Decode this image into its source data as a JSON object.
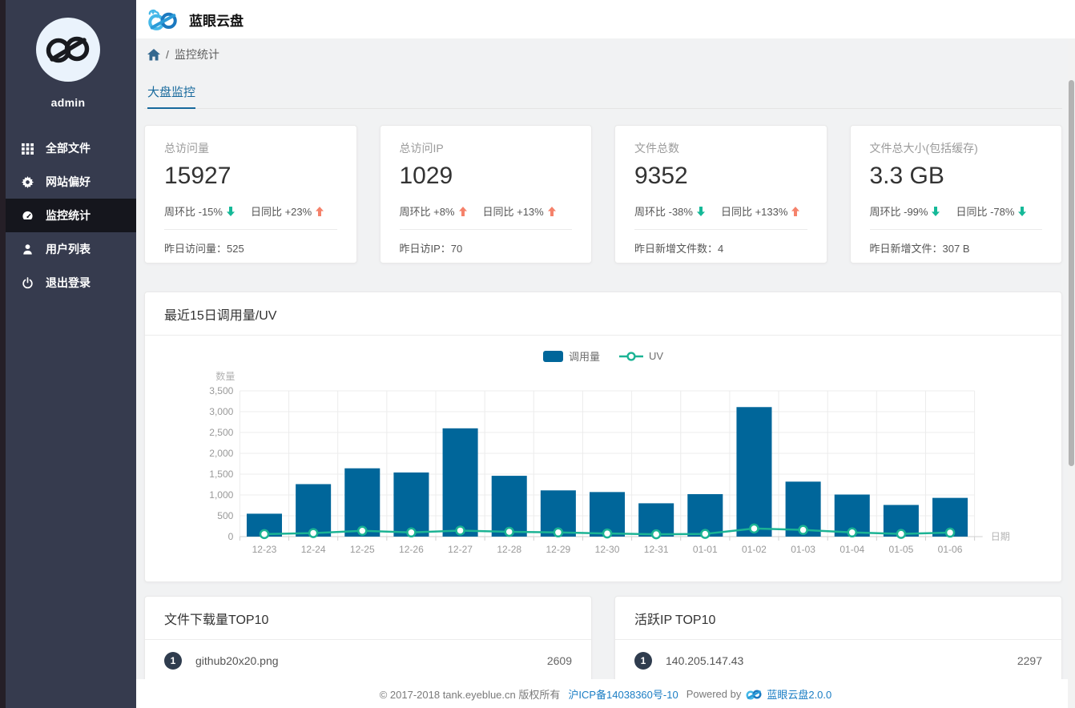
{
  "theme": {
    "sidebar_bg": "#363b4e",
    "sidebar_active_bg": "#15161d",
    "accent_blue": "#17699c",
    "bar_color": "#00669a",
    "line_color": "#1bb394",
    "up_color": "#f5826b",
    "down_color": "#15b998",
    "link_color": "#1a7dc4",
    "badge_color": "#2f3c4e"
  },
  "header": {
    "title": "蓝眼云盘"
  },
  "sidebar": {
    "username": "admin",
    "items": [
      {
        "id": "all-files",
        "label": "全部文件",
        "icon": "grid-icon",
        "active": false
      },
      {
        "id": "site-pref",
        "label": "网站偏好",
        "icon": "gear-icon",
        "active": false
      },
      {
        "id": "monitor",
        "label": "监控统计",
        "icon": "dashboard-icon",
        "active": true
      },
      {
        "id": "user-list",
        "label": "用户列表",
        "icon": "user-icon",
        "active": false
      },
      {
        "id": "logout",
        "label": "退出登录",
        "icon": "power-icon",
        "active": false
      }
    ]
  },
  "breadcrumb": {
    "separator": "/",
    "current": "监控统计"
  },
  "tabs": {
    "active": "大盘监控"
  },
  "stat_cards": [
    {
      "label": "总访问量",
      "value": "15927",
      "trends": [
        {
          "label": "周环比",
          "value": "-15%",
          "direction": "down"
        },
        {
          "label": "日同比",
          "value": "+23%",
          "direction": "up"
        }
      ],
      "footer_label": "昨日访问量：",
      "footer_value": "525"
    },
    {
      "label": "总访问IP",
      "value": "1029",
      "trends": [
        {
          "label": "周环比",
          "value": "+8%",
          "direction": "up"
        },
        {
          "label": "日同比",
          "value": "+13%",
          "direction": "up"
        }
      ],
      "footer_label": "昨日访IP：",
      "footer_value": "70"
    },
    {
      "label": "文件总数",
      "value": "9352",
      "trends": [
        {
          "label": "周环比",
          "value": "-38%",
          "direction": "down"
        },
        {
          "label": "日同比",
          "value": "+133%",
          "direction": "up"
        }
      ],
      "footer_label": "昨日新增文件数：",
      "footer_value": "4"
    },
    {
      "label": "文件总大小(包括缓存)",
      "value": "3.3 GB",
      "trends": [
        {
          "label": "周环比",
          "value": "-99%",
          "direction": "down"
        },
        {
          "label": "日同比",
          "value": "-78%",
          "direction": "down"
        }
      ],
      "footer_label": "昨日新增文件：",
      "footer_value": "307 B"
    }
  ],
  "chart_data": {
    "type": "bar",
    "title": "最近15日调用量/UV",
    "categories": [
      "12-23",
      "12-24",
      "12-25",
      "12-26",
      "12-27",
      "12-28",
      "12-29",
      "12-30",
      "12-31",
      "01-01",
      "01-02",
      "01-03",
      "01-04",
      "01-05",
      "01-06"
    ],
    "series": [
      {
        "name": "调用量",
        "type": "bar",
        "values": [
          550,
          1260,
          1640,
          1540,
          2600,
          1460,
          1110,
          1070,
          800,
          1020,
          3110,
          1320,
          1010,
          760,
          930
        ]
      },
      {
        "name": "UV",
        "type": "line",
        "values": [
          60,
          85,
          140,
          100,
          145,
          115,
          100,
          75,
          55,
          65,
          195,
          160,
          100,
          65,
          95
        ]
      }
    ],
    "xlabel": "日期",
    "ylabel": "数量",
    "ylim": [
      0,
      3500
    ],
    "ytick_step": 500,
    "grid": true,
    "legend_position": "top"
  },
  "top_lists": [
    {
      "title": "文件下载量TOP10",
      "rows": [
        {
          "rank": "1",
          "name": "github20x20.png",
          "value": "2609"
        }
      ]
    },
    {
      "title": "活跃IP TOP10",
      "rows": [
        {
          "rank": "1",
          "name": "140.205.147.43",
          "value": "2297"
        }
      ]
    }
  ],
  "footer": {
    "copyright": "© 2017-2018 tank.eyeblue.cn 版权所有",
    "icp": "沪ICP备14038360号-10",
    "powered_by": "Powered by",
    "product": "蓝眼云盘2.0.0"
  }
}
